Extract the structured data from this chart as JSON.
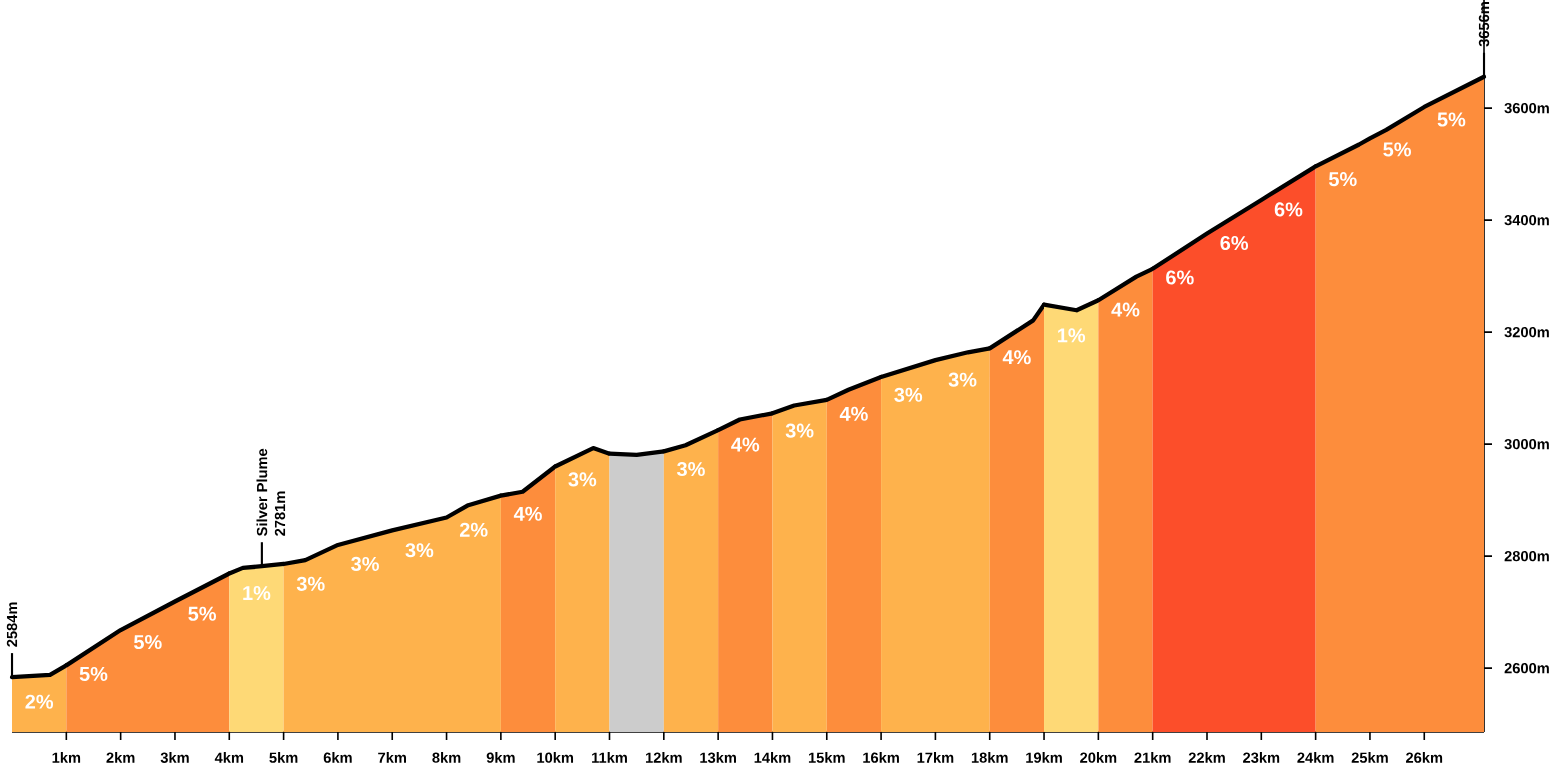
{
  "chart_data": {
    "type": "area",
    "series": [
      {
        "color": "#feb24c",
        "x": [
          0,
          0.7,
          1
        ],
        "values": [
          2584,
          2588,
          2605
        ]
      },
      {
        "color": "#fd8d3c",
        "x": [
          1,
          2,
          3,
          4
        ],
        "values": [
          2605,
          2668,
          2719,
          2769
        ]
      },
      {
        "color": "#fed976",
        "x": [
          4,
          4.25,
          4.6,
          5
        ],
        "values": [
          2769,
          2779,
          2782,
          2786
        ]
      },
      {
        "color": "#feb24c",
        "x": [
          5,
          5.4,
          6,
          7,
          8,
          8.4,
          9
        ],
        "values": [
          2786,
          2793,
          2820,
          2846,
          2869,
          2891,
          2908
        ]
      },
      {
        "color": "#fd8d3c",
        "x": [
          9,
          9.4,
          10
        ],
        "values": [
          2908,
          2915,
          2960
        ]
      },
      {
        "color": "#feb24c",
        "x": [
          10,
          10.7,
          11
        ],
        "values": [
          2960,
          2993,
          2983
        ]
      },
      {
        "color": "#cccccc",
        "x": [
          11,
          11.5,
          12
        ],
        "values": [
          2983,
          2981,
          2987
        ]
      },
      {
        "color": "#feb24c",
        "x": [
          12,
          12.4,
          13
        ],
        "values": [
          2987,
          2998,
          3025
        ]
      },
      {
        "color": "#fd8d3c",
        "x": [
          13,
          13.4,
          14
        ],
        "values": [
          3025,
          3044,
          3055
        ]
      },
      {
        "color": "#feb24c",
        "x": [
          14,
          14.4,
          15
        ],
        "values": [
          3055,
          3069,
          3079
        ]
      },
      {
        "color": "#fd8d3c",
        "x": [
          15,
          15.4,
          16
        ],
        "values": [
          3079,
          3097,
          3120
        ]
      },
      {
        "color": "#feb24c",
        "x": [
          16,
          17,
          17.6,
          18
        ],
        "values": [
          3120,
          3150,
          3164,
          3171
        ]
      },
      {
        "color": "#fd8d3c",
        "x": [
          18,
          18.8,
          19
        ],
        "values": [
          3171,
          3221,
          3249
        ]
      },
      {
        "color": "#fed976",
        "x": [
          19,
          19.6,
          20
        ],
        "values": [
          3249,
          3239,
          3257
        ]
      },
      {
        "color": "#fd8d3c",
        "x": [
          20,
          20.7,
          21
        ],
        "values": [
          3257,
          3299,
          3313
        ]
      },
      {
        "color": "#fc4e2a",
        "x": [
          21,
          22,
          23,
          23.3,
          24
        ],
        "values": [
          3313,
          3376,
          3436,
          3454,
          3496
        ]
      },
      {
        "color": "#fd8d3c",
        "x": [
          24,
          24.8,
          25,
          25.3,
          26,
          27.1
        ],
        "values": [
          3496,
          3535,
          3546,
          3561,
          3602,
          3656
        ]
      }
    ],
    "annotations": [
      {
        "text": "2584m",
        "x": 0,
        "y": 2584
      },
      {
        "text": "Silver Plume",
        "x": 4.6,
        "y": 2782
      },
      {
        "text": "2781m",
        "x": 4.6,
        "y": 2782
      },
      {
        "text": "3656m",
        "x": 27.1,
        "y": 3656
      },
      {
        "text": "2%",
        "x": 0.5,
        "y": 2587
      },
      {
        "text": "5%",
        "x": 1.5,
        "y": 2636.5
      },
      {
        "text": "5%",
        "x": 2.5,
        "y": 2693.5
      },
      {
        "text": "5%",
        "x": 3.5,
        "y": 2744
      },
      {
        "text": "1%",
        "x": 4.5,
        "y": 2781
      },
      {
        "text": "3%",
        "x": 5.5,
        "y": 2797.5
      },
      {
        "text": "3%",
        "x": 6.5,
        "y": 2833
      },
      {
        "text": "3%",
        "x": 7.5,
        "y": 2857.5
      },
      {
        "text": "2%",
        "x": 8.5,
        "y": 2894
      },
      {
        "text": "4%",
        "x": 9.5,
        "y": 2922.5
      },
      {
        "text": "3%",
        "x": 10.5,
        "y": 2984
      },
      {
        "text": "3%",
        "x": 12.5,
        "y": 3002.5
      },
      {
        "text": "4%",
        "x": 13.5,
        "y": 3046
      },
      {
        "text": "3%",
        "x": 14.5,
        "y": 3071
      },
      {
        "text": "4%",
        "x": 15.5,
        "y": 3101
      },
      {
        "text": "3%",
        "x": 16.5,
        "y": 3135
      },
      {
        "text": "3%",
        "x": 17.5,
        "y": 3162
      },
      {
        "text": "4%",
        "x": 18.5,
        "y": 3202
      },
      {
        "text": "1%",
        "x": 19.5,
        "y": 3241
      },
      {
        "text": "4%",
        "x": 20.5,
        "y": 3287
      },
      {
        "text": "6%",
        "x": 21.5,
        "y": 3344.5
      },
      {
        "text": "6%",
        "x": 22.5,
        "y": 3406
      },
      {
        "text": "6%",
        "x": 23.5,
        "y": 3466
      },
      {
        "text": "5%",
        "x": 24.5,
        "y": 3520
      },
      {
        "text": "5%",
        "x": 25.5,
        "y": 3573
      },
      {
        "text": "5%",
        "x": 26.5,
        "y": 3626.5
      }
    ],
    "xlim": [
      0,
      27.1
    ],
    "ylim": [
      2486,
      3793
    ],
    "xticks": [
      {
        "value": 1,
        "label": "1km"
      },
      {
        "value": 2,
        "label": "2km"
      },
      {
        "value": 3,
        "label": "3km"
      },
      {
        "value": 4,
        "label": "4km"
      },
      {
        "value": 5,
        "label": "5km"
      },
      {
        "value": 6,
        "label": "6km"
      },
      {
        "value": 7,
        "label": "7km"
      },
      {
        "value": 8,
        "label": "8km"
      },
      {
        "value": 9,
        "label": "9km"
      },
      {
        "value": 10,
        "label": "10km"
      },
      {
        "value": 11,
        "label": "11km"
      },
      {
        "value": 12,
        "label": "12km"
      },
      {
        "value": 13,
        "label": "13km"
      },
      {
        "value": 14,
        "label": "14km"
      },
      {
        "value": 15,
        "label": "15km"
      },
      {
        "value": 16,
        "label": "16km"
      },
      {
        "value": 17,
        "label": "17km"
      },
      {
        "value": 18,
        "label": "18km"
      },
      {
        "value": 19,
        "label": "19km"
      },
      {
        "value": 20,
        "label": "20km"
      },
      {
        "value": 21,
        "label": "21km"
      },
      {
        "value": 22,
        "label": "22km"
      },
      {
        "value": 23,
        "label": "23km"
      },
      {
        "value": 24,
        "label": "24km"
      },
      {
        "value": 25,
        "label": "25km"
      },
      {
        "value": 26,
        "label": "26km"
      }
    ],
    "yticks": [
      {
        "value": 2600,
        "label": "2600m"
      },
      {
        "value": 2800,
        "label": "2800m"
      },
      {
        "value": 3000,
        "label": "3000m"
      },
      {
        "value": 3200,
        "label": "3200m"
      },
      {
        "value": 3400,
        "label": "3400m"
      },
      {
        "value": 3600,
        "label": "3600m"
      }
    ],
    "grid": false,
    "marker": "none",
    "line_style": "solid"
  }
}
